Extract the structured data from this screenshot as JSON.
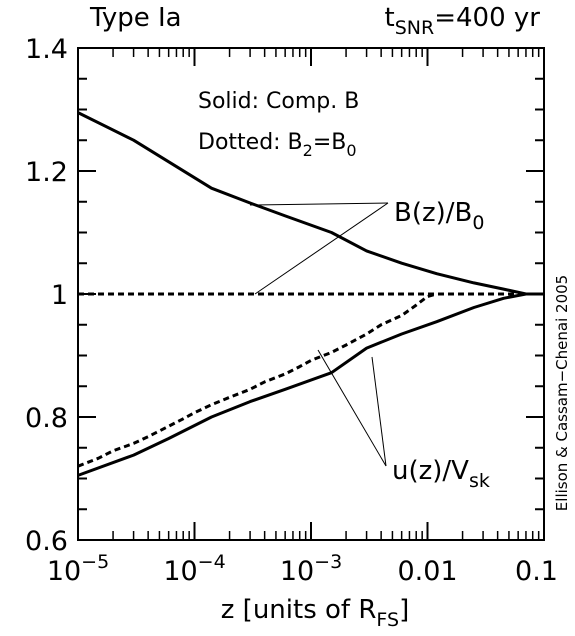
{
  "chart_data": {
    "type": "line",
    "top_left": "Type Ia",
    "top_right": {
      "base": "t",
      "sub": "SNR",
      "rest": "=400 yr"
    },
    "xlabel": {
      "base": "z  [units of R",
      "sub": "FS",
      "rest": "]"
    },
    "ylabel": "",
    "x_scale": "log",
    "xlim": [
      1e-05,
      0.1
    ],
    "ylim": [
      0.6,
      1.4
    ],
    "x_ticks": [
      {
        "value": 1e-05,
        "base": "10",
        "exp": "−5"
      },
      {
        "value": 0.0001,
        "base": "10",
        "exp": "−4"
      },
      {
        "value": 0.001,
        "base": "10",
        "exp": "−3"
      },
      {
        "value": 0.01,
        "label": "0.01"
      },
      {
        "value": 0.1,
        "label": "0.1"
      }
    ],
    "y_ticks": [
      {
        "value": 0.6,
        "label": "0.6"
      },
      {
        "value": 0.8,
        "label": "0.8"
      },
      {
        "value": 1.0,
        "label": "1"
      },
      {
        "value": 1.2,
        "label": "1.2"
      },
      {
        "value": 1.4,
        "label": "1.4"
      }
    ],
    "legend": {
      "line1": "Solid: Comp. B",
      "line2": {
        "prefix": "Dotted: B",
        "sub1": "2",
        "mid": "=B",
        "sub2": "0"
      }
    },
    "annotations": {
      "b_label": {
        "base": "B(z)/B",
        "sub": "0"
      },
      "u_label": {
        "base": "u(z)/V",
        "sub": "sk"
      }
    },
    "credit": "Ellison & Cassam−Chenai 2005",
    "series": [
      {
        "style": "solid",
        "x": [
          1e-05,
          3e-05,
          6e-05,
          0.00014,
          0.0003,
          0.0006,
          0.0015,
          0.003,
          0.006,
          0.012,
          0.025,
          0.045,
          0.07,
          0.1
        ],
        "y": [
          1.295,
          1.25,
          1.215,
          1.172,
          1.148,
          1.127,
          1.1,
          1.07,
          1.05,
          1.033,
          1.018,
          1.008,
          1.0,
          1.0
        ]
      },
      {
        "style": "solid",
        "x": [
          1e-05,
          3e-05,
          6e-05,
          0.00014,
          0.0003,
          0.0006,
          0.0015,
          0.003,
          0.006,
          0.012,
          0.025,
          0.045,
          0.07,
          0.1
        ],
        "y": [
          0.705,
          0.738,
          0.765,
          0.8,
          0.825,
          0.845,
          0.872,
          0.912,
          0.935,
          0.955,
          0.978,
          0.993,
          1.0,
          1.0
        ]
      },
      {
        "style": "dotted",
        "x": [
          1e-05,
          0.1
        ],
        "y": [
          1.0,
          1.0
        ]
      },
      {
        "style": "dotted",
        "x": [
          1e-05,
          1.5e-05,
          2e-05,
          3e-05,
          4e-05,
          6e-05,
          8e-05,
          0.0001,
          0.00014,
          0.0002,
          0.0003,
          0.0004,
          0.0006,
          0.0008,
          0.001,
          0.0015,
          0.002,
          0.003,
          0.004,
          0.006,
          0.008,
          0.01,
          0.012
        ],
        "y": [
          0.72,
          0.733,
          0.745,
          0.757,
          0.768,
          0.785,
          0.797,
          0.807,
          0.82,
          0.832,
          0.845,
          0.857,
          0.87,
          0.882,
          0.892,
          0.905,
          0.917,
          0.935,
          0.95,
          0.965,
          0.982,
          0.996,
          1.0
        ]
      }
    ]
  }
}
